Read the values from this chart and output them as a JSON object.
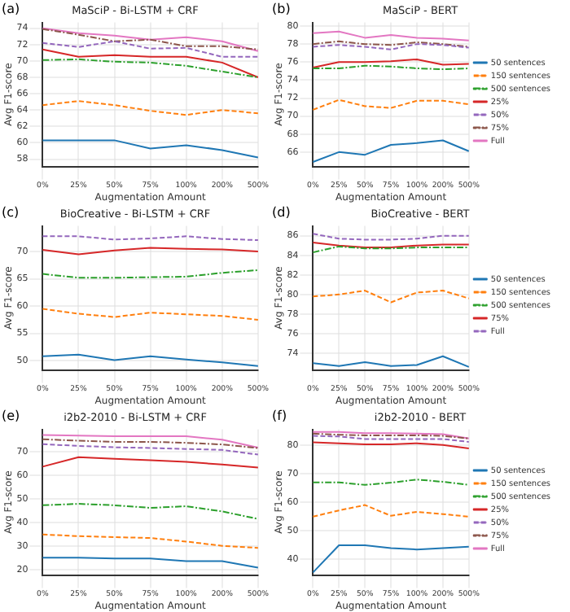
{
  "chart_data": [
    {
      "type": "line",
      "title": "MaSciP - Bi-LSTM + CRF",
      "xlabel": "Augmentation Amount",
      "ylabel": "Avg F1-score",
      "annotations": [
        "(a)"
      ],
      "categories": [
        "0%",
        "25%",
        "50%",
        "75%",
        "100%",
        "200%",
        "500%"
      ],
      "ylim": [
        57.1,
        74.7
      ],
      "yticks": [
        58,
        60,
        62,
        64,
        66,
        68,
        70,
        72,
        74
      ],
      "grid": true,
      "legend": false,
      "series": [
        {
          "color": "#1f77b4",
          "line_style": "solid",
          "values": [
            60.3,
            60.3,
            60.3,
            59.3,
            59.7,
            59.1,
            58.2
          ]
        },
        {
          "color": "#ff7f0e",
          "line_style": "dashed",
          "values": [
            64.6,
            65.1,
            64.6,
            63.9,
            63.4,
            64.0,
            63.6
          ]
        },
        {
          "color": "#2ca02c",
          "line_style": "dashdot",
          "values": [
            70.1,
            70.2,
            69.9,
            69.8,
            69.4,
            68.7,
            68.0
          ]
        },
        {
          "color": "#d62728",
          "line_style": "solid",
          "values": [
            71.4,
            70.5,
            70.7,
            70.5,
            70.5,
            69.8,
            68.0
          ]
        },
        {
          "color": "#9467bd",
          "line_style": "dashed",
          "values": [
            72.2,
            71.7,
            72.4,
            71.5,
            71.6,
            70.5,
            70.5
          ]
        },
        {
          "color": "#8c564b",
          "line_style": "dashdot",
          "values": [
            73.9,
            73.2,
            72.4,
            72.6,
            71.8,
            71.8,
            71.4
          ]
        },
        {
          "color": "#e377c2",
          "line_style": "solid",
          "values": [
            74.0,
            73.4,
            73.1,
            72.6,
            72.9,
            72.4,
            71.2
          ]
        }
      ]
    },
    {
      "type": "line",
      "title": "MaSciP - BERT",
      "xlabel": "Augmentation Amount",
      "ylabel": "Avg F1-score",
      "annotations": [
        "(b)"
      ],
      "categories": [
        "0%",
        "25%",
        "50%",
        "75%",
        "100%",
        "200%",
        "500%"
      ],
      "ylim": [
        64.4,
        80.4
      ],
      "yticks": [
        66,
        68,
        70,
        72,
        74,
        76,
        78,
        80
      ],
      "grid": true,
      "legend": "right",
      "series": [
        {
          "name": "50 sentences",
          "color": "#1f77b4",
          "line_style": "solid",
          "values": [
            64.9,
            66.0,
            65.7,
            66.8,
            67.0,
            67.3,
            66.1
          ]
        },
        {
          "name": "150 sentences",
          "color": "#ff7f0e",
          "line_style": "dashed",
          "values": [
            70.7,
            71.8,
            71.1,
            70.9,
            71.7,
            71.7,
            71.3
          ]
        },
        {
          "name": "500 sentences",
          "color": "#2ca02c",
          "line_style": "dashdot",
          "values": [
            75.3,
            75.3,
            75.6,
            75.5,
            75.3,
            75.2,
            75.3
          ]
        },
        {
          "name": "25%",
          "color": "#d62728",
          "line_style": "solid",
          "values": [
            75.4,
            76.0,
            76.0,
            76.1,
            76.3,
            75.7,
            75.8
          ]
        },
        {
          "name": "50%",
          "color": "#9467bd",
          "line_style": "dashed",
          "values": [
            77.7,
            77.9,
            77.7,
            77.4,
            78.0,
            77.9,
            77.6
          ]
        },
        {
          "name": "75%",
          "color": "#8c564b",
          "line_style": "dashdot",
          "values": [
            78.0,
            78.3,
            78.0,
            77.9,
            78.2,
            78.0,
            77.7
          ]
        },
        {
          "name": "Full",
          "color": "#e377c2",
          "line_style": "solid",
          "values": [
            79.2,
            79.4,
            78.7,
            79.0,
            78.7,
            78.6,
            78.4
          ]
        }
      ]
    },
    {
      "type": "line",
      "title": "BioCreative - Bi-LSTM + CRF",
      "xlabel": "Augmentation Amount",
      "ylabel": "Avg F1-score",
      "annotations": [
        "(c)"
      ],
      "categories": [
        "0%",
        "25%",
        "50%",
        "75%",
        "100%",
        "200%",
        "500%"
      ],
      "ylim": [
        48.3,
        74.7
      ],
      "yticks": [
        50,
        55,
        60,
        65,
        70
      ],
      "grid": true,
      "legend": false,
      "series": [
        {
          "color": "#1f77b4",
          "line_style": "solid",
          "values": [
            50.8,
            51.1,
            50.1,
            50.8,
            50.2,
            49.7,
            49.0
          ]
        },
        {
          "color": "#ff7f0e",
          "line_style": "dashed",
          "values": [
            59.5,
            58.6,
            58.0,
            58.8,
            58.5,
            58.2,
            57.5
          ]
        },
        {
          "color": "#2ca02c",
          "line_style": "dashdot",
          "values": [
            65.9,
            65.2,
            65.2,
            65.3,
            65.4,
            66.1,
            66.6
          ]
        },
        {
          "color": "#d62728",
          "line_style": "solid",
          "values": [
            70.3,
            69.5,
            70.2,
            70.7,
            70.5,
            70.4,
            70.0
          ]
        },
        {
          "color": "#9467bd",
          "line_style": "dashed",
          "values": [
            72.8,
            72.8,
            72.2,
            72.4,
            72.8,
            72.3,
            72.1
          ]
        }
      ]
    },
    {
      "type": "line",
      "title": "BioCreative - BERT",
      "xlabel": "Augmentation Amount",
      "ylabel": "Avg F1-score",
      "annotations": [
        "(d)"
      ],
      "categories": [
        "0%",
        "25%",
        "50%",
        "75%",
        "100%",
        "200%",
        "500%"
      ],
      "ylim": [
        72.3,
        87.0
      ],
      "yticks": [
        74,
        76,
        78,
        80,
        82,
        84,
        86
      ],
      "grid": true,
      "legend": "right",
      "series": [
        {
          "name": "50 sentences",
          "color": "#1f77b4",
          "line_style": "solid",
          "values": [
            73.0,
            72.7,
            73.1,
            72.7,
            72.8,
            73.7,
            72.6
          ]
        },
        {
          "name": "150 sentences",
          "color": "#ff7f0e",
          "line_style": "dashed",
          "values": [
            79.8,
            80.0,
            80.4,
            79.2,
            80.2,
            80.4,
            79.6
          ]
        },
        {
          "name": "500 sentences",
          "color": "#2ca02c",
          "line_style": "dashdot",
          "values": [
            84.3,
            84.9,
            84.7,
            84.7,
            84.8,
            84.8,
            84.8
          ]
        },
        {
          "name": "75%",
          "color": "#d62728",
          "line_style": "solid",
          "values": [
            85.3,
            85.0,
            84.8,
            84.8,
            85.0,
            85.1,
            85.1
          ]
        },
        {
          "name": "Full",
          "color": "#9467bd",
          "line_style": "dashed",
          "values": [
            86.2,
            85.7,
            85.6,
            85.6,
            85.7,
            86.0,
            86.0
          ]
        }
      ]
    },
    {
      "type": "line",
      "title": "i2b2-2010 - Bi-LSTM + CRF",
      "xlabel": "Augmentation Amount",
      "ylabel": "Avg F1-score",
      "annotations": [
        "(e)"
      ],
      "categories": [
        "0%",
        "25%",
        "50%",
        "75%",
        "100%",
        "200%",
        "500%"
      ],
      "ylim": [
        17.8,
        79.6
      ],
      "yticks": [
        20,
        30,
        40,
        50,
        60,
        70
      ],
      "grid": true,
      "legend": false,
      "series": [
        {
          "color": "#1f77b4",
          "line_style": "solid",
          "values": [
            25.2,
            25.2,
            24.8,
            24.8,
            23.7,
            23.7,
            20.9
          ]
        },
        {
          "color": "#ff7f0e",
          "line_style": "dashed",
          "values": [
            35.0,
            34.3,
            33.9,
            33.5,
            32.0,
            30.2,
            29.3
          ]
        },
        {
          "color": "#2ca02c",
          "line_style": "dashdot",
          "values": [
            47.4,
            48.0,
            47.4,
            46.3,
            47.0,
            44.8,
            41.6
          ]
        },
        {
          "color": "#d62728",
          "line_style": "solid",
          "values": [
            63.8,
            67.8,
            67.1,
            66.5,
            65.8,
            64.7,
            63.4
          ]
        },
        {
          "color": "#9467bd",
          "line_style": "dashed",
          "values": [
            73.3,
            72.6,
            72.0,
            71.7,
            71.3,
            70.9,
            68.9
          ]
        },
        {
          "color": "#8c564b",
          "line_style": "dashdot",
          "values": [
            75.4,
            74.8,
            74.3,
            74.3,
            73.9,
            73.2,
            71.7
          ]
        },
        {
          "color": "#e377c2",
          "line_style": "solid",
          "values": [
            77.2,
            77.0,
            76.7,
            76.7,
            76.7,
            75.2,
            71.9
          ]
        }
      ]
    },
    {
      "type": "line",
      "title": "i2b2-2010 - BERT",
      "xlabel": "Augmentation Amount",
      "ylabel": "Avg F1-score",
      "annotations": [
        "(f)"
      ],
      "categories": [
        "0%",
        "25%",
        "50%",
        "75%",
        "100%",
        "200%",
        "500%"
      ],
      "ylim": [
        34.3,
        85.7
      ],
      "yticks": [
        40,
        50,
        60,
        70,
        80
      ],
      "grid": true,
      "legend": "right",
      "series": [
        {
          "name": "50 sentences",
          "color": "#1f77b4",
          "line_style": "solid",
          "values": [
            35.2,
            44.8,
            44.8,
            43.8,
            43.3,
            43.8,
            44.3
          ]
        },
        {
          "name": "150 sentences",
          "color": "#ff7f0e",
          "line_style": "dashed",
          "values": [
            54.9,
            57.1,
            59.0,
            55.2,
            56.6,
            55.8,
            54.9
          ]
        },
        {
          "name": "500 sentences",
          "color": "#2ca02c",
          "line_style": "dashdot",
          "values": [
            67.0,
            67.0,
            66.1,
            66.9,
            68.0,
            67.2,
            66.1
          ]
        },
        {
          "name": "25%",
          "color": "#d62728",
          "line_style": "solid",
          "values": [
            81.1,
            80.8,
            80.4,
            80.4,
            80.8,
            80.2,
            79.0
          ]
        },
        {
          "name": "50%",
          "color": "#9467bd",
          "line_style": "dashed",
          "values": [
            83.4,
            83.2,
            82.3,
            82.3,
            82.3,
            82.3,
            81.3
          ]
        },
        {
          "name": "75%",
          "color": "#8c564b",
          "line_style": "dashdot",
          "values": [
            84.2,
            83.8,
            83.6,
            83.6,
            83.6,
            83.4,
            82.5
          ]
        },
        {
          "name": "Full",
          "color": "#e377c2",
          "line_style": "solid",
          "values": [
            84.8,
            84.8,
            84.4,
            84.4,
            84.2,
            84.0,
            82.5
          ]
        }
      ]
    }
  ]
}
